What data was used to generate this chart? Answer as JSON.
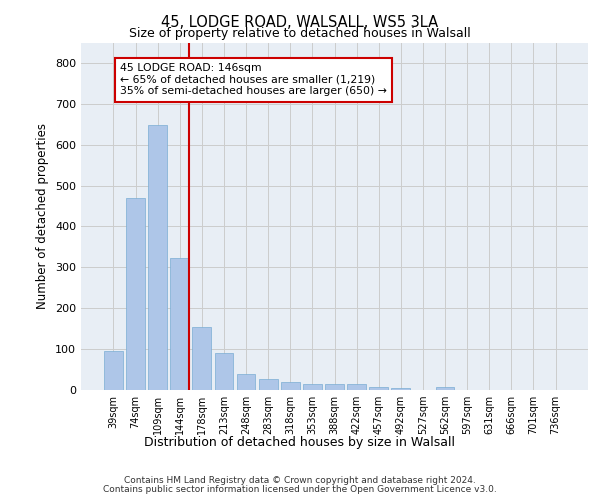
{
  "title1": "45, LODGE ROAD, WALSALL, WS5 3LA",
  "title2": "Size of property relative to detached houses in Walsall",
  "xlabel": "Distribution of detached houses by size in Walsall",
  "ylabel": "Number of detached properties",
  "categories": [
    "39sqm",
    "74sqm",
    "109sqm",
    "144sqm",
    "178sqm",
    "213sqm",
    "248sqm",
    "283sqm",
    "318sqm",
    "353sqm",
    "388sqm",
    "422sqm",
    "457sqm",
    "492sqm",
    "527sqm",
    "562sqm",
    "597sqm",
    "631sqm",
    "666sqm",
    "701sqm",
    "736sqm"
  ],
  "values": [
    95,
    470,
    648,
    323,
    155,
    90,
    40,
    28,
    20,
    15,
    15,
    14,
    8,
    5,
    0,
    8,
    0,
    0,
    0,
    0,
    0
  ],
  "bar_color": "#aec6e8",
  "bar_edge_color": "#7aadd4",
  "marker_index": 3,
  "marker_color": "#cc0000",
  "annotation_line1": "45 LODGE ROAD: 146sqm",
  "annotation_line2": "← 65% of detached houses are smaller (1,219)",
  "annotation_line3": "35% of semi-detached houses are larger (650) →",
  "annotation_box_color": "#ffffff",
  "annotation_box_edge": "#cc0000",
  "ylim": [
    0,
    850
  ],
  "yticks": [
    0,
    100,
    200,
    300,
    400,
    500,
    600,
    700,
    800
  ],
  "grid_color": "#cccccc",
  "bg_color": "#e8eef5",
  "footer1": "Contains HM Land Registry data © Crown copyright and database right 2024.",
  "footer2": "Contains public sector information licensed under the Open Government Licence v3.0."
}
